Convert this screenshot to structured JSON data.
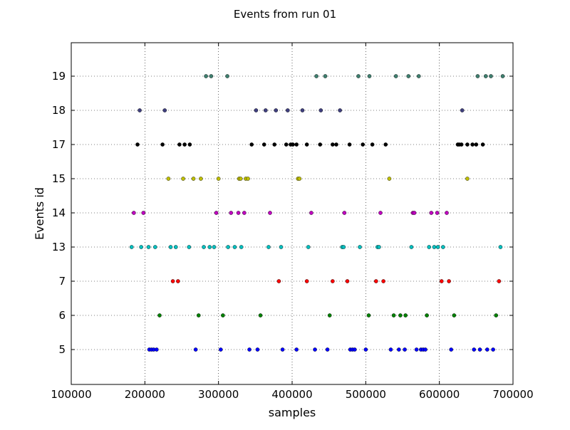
{
  "chart_data": {
    "type": "scatter",
    "title": "Events from run 01",
    "xlabel": "samples",
    "ylabel": "Events id",
    "xlim": [
      100000,
      700000
    ],
    "x_ticks": [
      "100000",
      "200000",
      "300000",
      "400000",
      "500000",
      "600000",
      "700000"
    ],
    "y_categories": [
      "5",
      "6",
      "7",
      "13",
      "14",
      "15",
      "17",
      "18",
      "19"
    ],
    "grid": true,
    "series": [
      {
        "category": "5",
        "color": "#0000ff",
        "x": [
          206000,
          209000,
          212000,
          216000,
          269000,
          303000,
          342000,
          353000,
          387000,
          406000,
          431000,
          448000,
          479000,
          482000,
          485000,
          500000,
          534000,
          545000,
          553000,
          569000,
          575000,
          578000,
          581000,
          616000,
          647000,
          655000,
          665000,
          673000
        ]
      },
      {
        "category": "6",
        "color": "#008000",
        "x": [
          220000,
          273000,
          306000,
          357000,
          451000,
          504000,
          538000,
          547000,
          554000,
          583000,
          620000,
          677000
        ]
      },
      {
        "category": "7",
        "color": "#ff0000",
        "x": [
          238000,
          245000,
          382000,
          420000,
          455000,
          475000,
          514000,
          524000,
          603000,
          613000,
          681000
        ]
      },
      {
        "category": "13",
        "color": "#00bfbf",
        "x": [
          182000,
          195000,
          205000,
          214000,
          235000,
          242000,
          260000,
          280000,
          288000,
          294000,
          313000,
          322000,
          331000,
          368000,
          385000,
          422000,
          468000,
          470000,
          492000,
          516000,
          518000,
          562000,
          586000,
          593000,
          598000,
          605000,
          683000
        ]
      },
      {
        "category": "14",
        "color": "#bf00bf",
        "x": [
          185000,
          198000,
          297000,
          317000,
          327000,
          335000,
          370000,
          426000,
          471000,
          520000,
          564000,
          566000,
          589000,
          597000,
          610000
        ]
      },
      {
        "category": "15",
        "color": "#bfbf00",
        "x": [
          232000,
          252000,
          266000,
          276000,
          300000,
          328000,
          330000,
          337000,
          340000,
          408000,
          410000,
          532000,
          638000
        ]
      },
      {
        "category": "17",
        "color": "#000000",
        "x": [
          190000,
          224000,
          247000,
          254000,
          261000,
          345000,
          362000,
          376000,
          392000,
          398000,
          401000,
          406000,
          420000,
          438000,
          455000,
          460000,
          478000,
          496000,
          509000,
          527000,
          625000,
          627000,
          630000,
          638000,
          645000,
          650000,
          659000
        ]
      },
      {
        "category": "18",
        "color": "#3f3f7f",
        "x": [
          193000,
          227000,
          351000,
          364000,
          378000,
          394000,
          414000,
          439000,
          465000,
          631000
        ]
      },
      {
        "category": "19",
        "color": "#3f7f6f",
        "x": [
          283000,
          290000,
          312000,
          433000,
          445000,
          490000,
          505000,
          541000,
          558000,
          572000,
          652000,
          663000,
          670000,
          686000
        ]
      }
    ]
  }
}
